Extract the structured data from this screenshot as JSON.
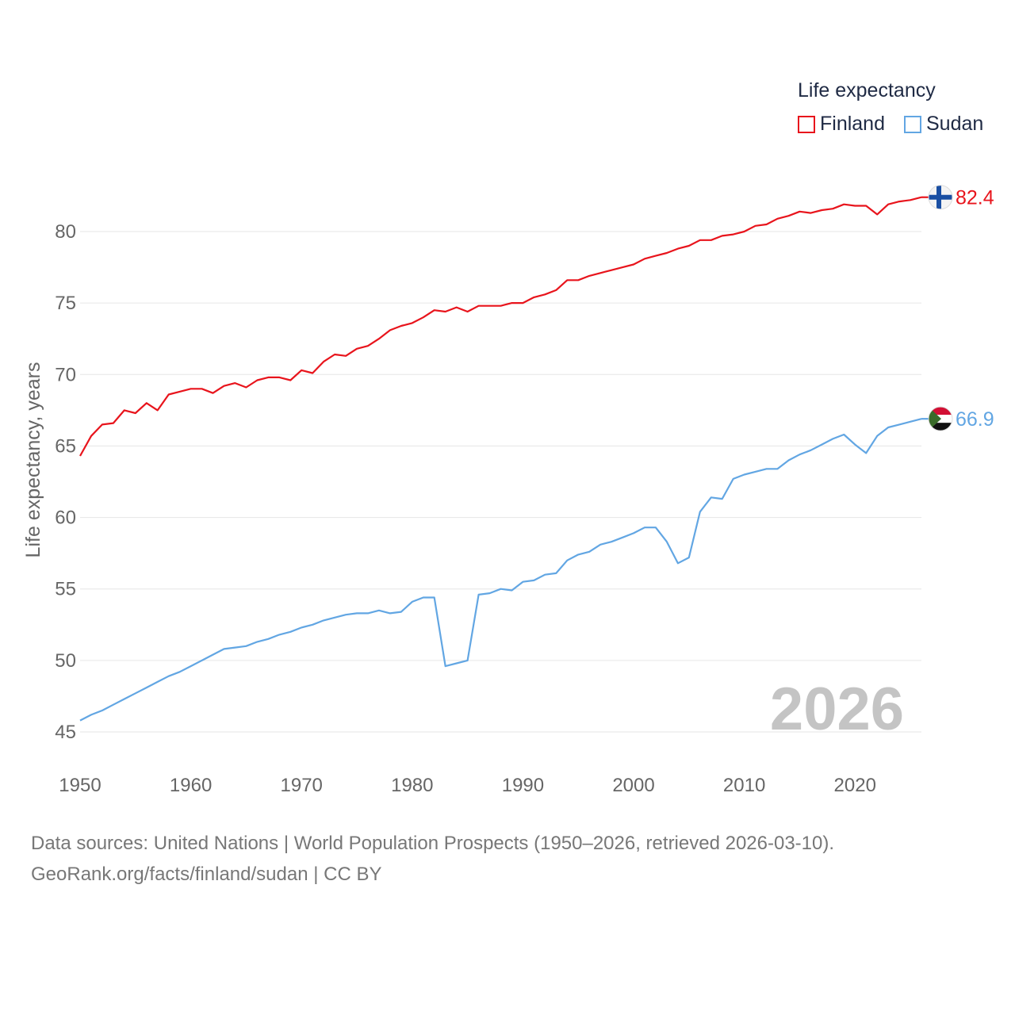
{
  "chart_data": {
    "type": "line",
    "title": "",
    "ylabel": "Life expectancy, years",
    "xlabel": "",
    "legend_title": "Life expectancy",
    "legend_position": "top-right",
    "year_watermark": "2026",
    "xlim": [
      1950,
      2026
    ],
    "ylim": [
      43,
      83.5
    ],
    "xticks": [
      1950,
      1960,
      1970,
      1980,
      1990,
      2000,
      2010,
      2020
    ],
    "yticks": [
      45,
      50,
      55,
      60,
      65,
      70,
      75,
      80
    ],
    "grid": true,
    "x": [
      1950,
      1951,
      1952,
      1953,
      1954,
      1955,
      1956,
      1957,
      1958,
      1959,
      1960,
      1961,
      1962,
      1963,
      1964,
      1965,
      1966,
      1967,
      1968,
      1969,
      1970,
      1971,
      1972,
      1973,
      1974,
      1975,
      1976,
      1977,
      1978,
      1979,
      1980,
      1981,
      1982,
      1983,
      1984,
      1985,
      1986,
      1987,
      1988,
      1989,
      1990,
      1991,
      1992,
      1993,
      1994,
      1995,
      1996,
      1997,
      1998,
      1999,
      2000,
      2001,
      2002,
      2003,
      2004,
      2005,
      2006,
      2007,
      2008,
      2009,
      2010,
      2011,
      2012,
      2013,
      2014,
      2015,
      2016,
      2017,
      2018,
      2019,
      2020,
      2021,
      2022,
      2023,
      2024,
      2025,
      2026
    ],
    "series": [
      {
        "name": "Finland",
        "color": "#e8141c",
        "end_label": "82.4",
        "flag": "finland-flag",
        "values": [
          64.3,
          65.7,
          66.5,
          66.6,
          67.5,
          67.3,
          68.0,
          67.5,
          68.6,
          68.8,
          69.0,
          69.0,
          68.7,
          69.2,
          69.4,
          69.1,
          69.6,
          69.8,
          69.8,
          69.6,
          70.3,
          70.1,
          70.9,
          71.4,
          71.3,
          71.8,
          72.0,
          72.5,
          73.1,
          73.4,
          73.6,
          74.0,
          74.5,
          74.4,
          74.7,
          74.4,
          74.8,
          74.8,
          74.8,
          75.0,
          75.0,
          75.4,
          75.6,
          75.9,
          76.6,
          76.6,
          76.9,
          77.1,
          77.3,
          77.5,
          77.7,
          78.1,
          78.3,
          78.5,
          78.8,
          79.0,
          79.4,
          79.4,
          79.7,
          79.8,
          80.0,
          80.4,
          80.5,
          80.9,
          81.1,
          81.4,
          81.3,
          81.5,
          81.6,
          81.9,
          81.8,
          81.8,
          81.2,
          81.9,
          82.1,
          82.2,
          82.4
        ]
      },
      {
        "name": "Sudan",
        "color": "#62a6e3",
        "end_label": "66.9",
        "flag": "sudan-flag",
        "values": [
          45.8,
          46.2,
          46.5,
          46.9,
          47.3,
          47.7,
          48.1,
          48.5,
          48.9,
          49.2,
          49.6,
          50.0,
          50.4,
          50.8,
          50.9,
          51.0,
          51.3,
          51.5,
          51.8,
          52.0,
          52.3,
          52.5,
          52.8,
          53.0,
          53.2,
          53.3,
          53.3,
          53.5,
          53.3,
          53.4,
          54.1,
          54.4,
          54.4,
          49.6,
          49.8,
          50.0,
          54.6,
          54.7,
          55.0,
          54.9,
          55.5,
          55.6,
          56.0,
          56.1,
          57.0,
          57.4,
          57.6,
          58.1,
          58.3,
          58.6,
          58.9,
          59.3,
          59.3,
          58.3,
          56.8,
          57.2,
          60.4,
          61.4,
          61.3,
          62.7,
          63.0,
          63.2,
          63.4,
          63.4,
          64.0,
          64.4,
          64.7,
          65.1,
          65.5,
          65.8,
          65.1,
          64.5,
          65.7,
          66.3,
          66.5,
          66.7,
          66.9
        ]
      }
    ]
  },
  "footer": {
    "sources_line": "Data sources: United Nations | World Population Prospects (1950–2026, retrieved 2026-03-10).",
    "link_line": "GeoRank.org/facts/finland/sudan | CC BY"
  }
}
